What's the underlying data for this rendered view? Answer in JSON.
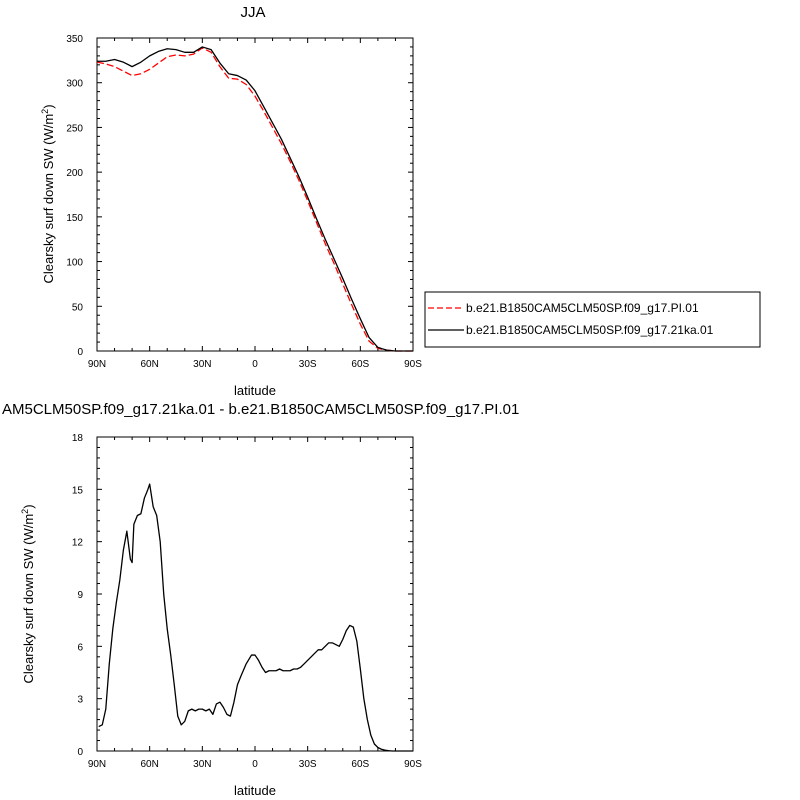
{
  "chart_data": [
    {
      "type": "line",
      "title": "JJA",
      "xlabel": "latitude",
      "ylabel": "Clearsky surf down SW (W/m",
      "ylabel_sup": "2",
      "ylabel_end": ")",
      "x_ticks": [
        90,
        60,
        30,
        0,
        -30,
        -60,
        -90
      ],
      "x_tick_labels": [
        "90N",
        "60N",
        "30N",
        "0",
        "30S",
        "60S",
        "90S"
      ],
      "xlim": [
        90,
        -90
      ],
      "ylim": [
        0,
        350
      ],
      "y_ticks": [
        0,
        50,
        100,
        150,
        200,
        250,
        300,
        350
      ],
      "legend_position": "right",
      "series": [
        {
          "name": "b.e21.B1850CAM5CLM50SP.f09_g17.PI.01",
          "color": "#ff0000",
          "dash": "dashed",
          "x": [
            90,
            85,
            80,
            75,
            70,
            65,
            60,
            55,
            50,
            45,
            40,
            35,
            30,
            25,
            20,
            15,
            10,
            5,
            0,
            -5,
            -10,
            -15,
            -20,
            -25,
            -30,
            -35,
            -40,
            -45,
            -50,
            -55,
            -60,
            -65,
            -70,
            -75,
            -80,
            -85,
            -90
          ],
          "y": [
            323,
            321,
            318,
            313,
            308,
            310,
            315,
            322,
            329,
            331,
            330,
            332,
            339,
            334,
            318,
            305,
            304,
            298,
            285,
            268,
            250,
            232,
            212,
            191,
            168,
            144,
            120,
            98,
            75,
            52,
            30,
            11,
            3,
            1,
            0,
            0,
            0
          ]
        },
        {
          "name": "b.e21.B1850CAM5CLM50SP.f09_g17.21ka.01",
          "color": "#000000",
          "dash": "solid",
          "x": [
            90,
            85,
            80,
            75,
            70,
            65,
            60,
            55,
            50,
            45,
            40,
            35,
            30,
            25,
            20,
            15,
            10,
            5,
            0,
            -5,
            -10,
            -15,
            -20,
            -25,
            -30,
            -35,
            -40,
            -45,
            -50,
            -55,
            -60,
            -65,
            -70,
            -75,
            -80,
            -85,
            -90
          ],
          "y": [
            324,
            324,
            326,
            323,
            318,
            323,
            330,
            335,
            338,
            337,
            334,
            334,
            340,
            337,
            322,
            310,
            308,
            303,
            291,
            273,
            255,
            237,
            216,
            195,
            172,
            148,
            125,
            103,
            81,
            58,
            36,
            15,
            4,
            1,
            0,
            0,
            0
          ]
        }
      ]
    },
    {
      "type": "line",
      "title": "AM5CLM50SP.f09_g17.21ka.01 - b.e21.B1850CAM5CLM50SP.f09_g17.PI.01",
      "xlabel": "latitude",
      "ylabel": "Clearsky surf down SW (W/m",
      "ylabel_sup": "2",
      "ylabel_end": ")",
      "x_ticks": [
        90,
        60,
        30,
        0,
        -30,
        -60,
        -90
      ],
      "x_tick_labels": [
        "90N",
        "60N",
        "30N",
        "0",
        "30S",
        "60S",
        "90S"
      ],
      "xlim": [
        90,
        -90
      ],
      "ylim": [
        0,
        18
      ],
      "y_ticks": [
        0,
        3,
        6,
        9,
        12,
        15,
        18
      ],
      "series": [
        {
          "color": "#000000",
          "dash": "solid",
          "x": [
            89,
            87,
            85,
            83,
            81,
            79,
            77,
            75,
            73,
            71,
            70,
            69,
            67,
            65,
            63,
            61,
            60,
            58,
            56,
            54,
            52,
            50,
            48,
            46,
            44,
            42,
            40,
            38,
            36,
            34,
            32,
            30,
            28,
            26,
            24,
            22,
            20,
            18,
            16,
            14,
            12,
            10,
            8,
            5,
            2,
            0,
            -2,
            -4,
            -6,
            -8,
            -10,
            -12,
            -14,
            -16,
            -18,
            -20,
            -22,
            -24,
            -26,
            -28,
            -30,
            -32,
            -34,
            -36,
            -38,
            -40,
            -42,
            -44,
            -46,
            -48,
            -50,
            -52,
            -54,
            -56,
            -58,
            -60,
            -62,
            -64,
            -66,
            -68,
            -70,
            -72,
            -74,
            -76,
            -78,
            -80,
            -85,
            -90
          ],
          "y": [
            1.4,
            1.5,
            2.4,
            5.0,
            7.0,
            8.5,
            9.8,
            11.5,
            12.6,
            11.0,
            10.8,
            13.0,
            13.5,
            13.6,
            14.5,
            15.0,
            15.3,
            14.0,
            13.5,
            12.0,
            9.0,
            7.0,
            5.5,
            3.8,
            2.0,
            1.5,
            1.7,
            2.3,
            2.4,
            2.3,
            2.4,
            2.4,
            2.3,
            2.4,
            2.1,
            2.7,
            2.8,
            2.5,
            2.1,
            2.0,
            2.8,
            3.8,
            4.3,
            5.0,
            5.5,
            5.5,
            5.2,
            4.8,
            4.5,
            4.6,
            4.6,
            4.6,
            4.7,
            4.6,
            4.6,
            4.6,
            4.7,
            4.7,
            4.8,
            5.0,
            5.2,
            5.4,
            5.6,
            5.8,
            5.8,
            6.0,
            6.2,
            6.2,
            6.1,
            6.0,
            6.4,
            6.9,
            7.2,
            7.1,
            6.3,
            4.7,
            3.0,
            1.8,
            0.9,
            0.4,
            0.2,
            0.1,
            0.05,
            0.02,
            0.0,
            0.0,
            0.0,
            0.0
          ]
        }
      ]
    }
  ]
}
